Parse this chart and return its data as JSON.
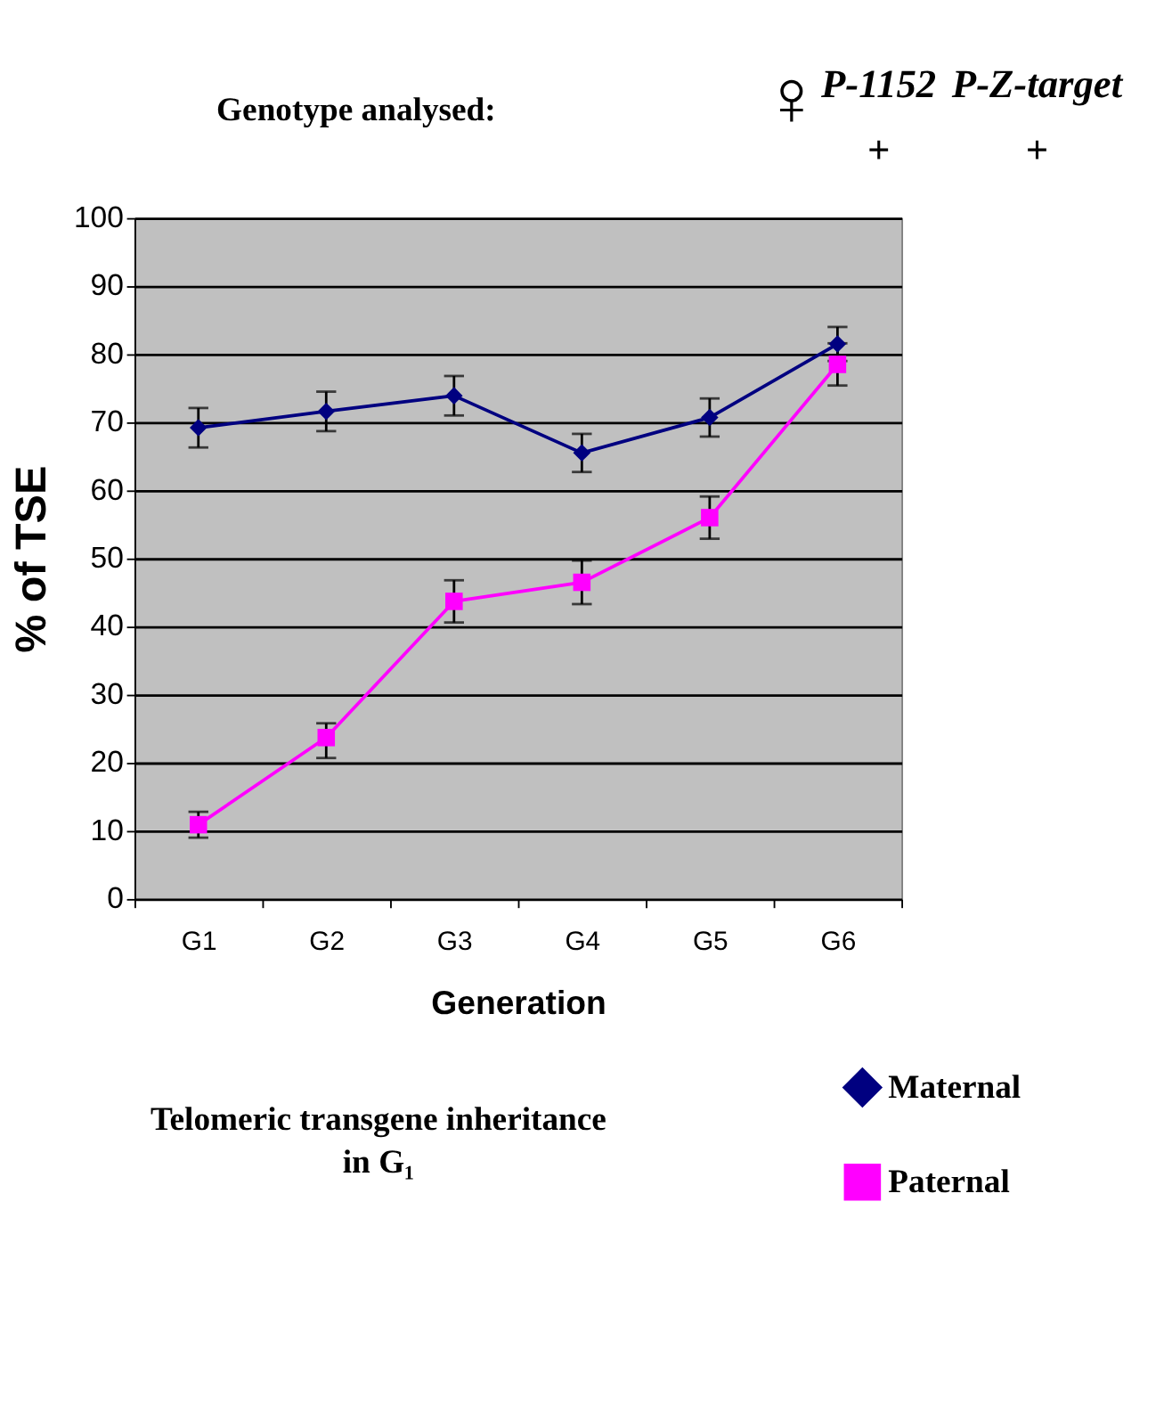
{
  "chart_data": {
    "type": "line",
    "title": "Genotype analysed:",
    "annotations": [
      "♀",
      "P-1152",
      "+",
      "P-Z-target",
      "+"
    ],
    "xlabel": "Generation",
    "ylabel": "% of TSE",
    "legend_title": "Telomeric transgene inheritance in G₁",
    "categories": [
      "G1",
      "G2",
      "G3",
      "G4",
      "G5",
      "G6"
    ],
    "series": [
      {
        "name": "Maternal",
        "color": "#000080",
        "marker": "diamond",
        "values": [
          69.2,
          71.6,
          73.9,
          65.5,
          70.7,
          81.5
        ],
        "errors": [
          2.9,
          2.9,
          2.9,
          2.8,
          2.8,
          2.5
        ]
      },
      {
        "name": "Paternal",
        "color": "#ff00ff",
        "marker": "square",
        "values": [
          10.9,
          23.7,
          43.7,
          46.5,
          56.0,
          78.5
        ],
        "errors": [
          1.9,
          [
            20.7,
            25.8
          ],
          3.1,
          3.2,
          3.1,
          3.1
        ]
      }
    ],
    "ylim": [
      0,
      100
    ],
    "yticks": [
      0,
      10,
      20,
      30,
      40,
      50,
      60,
      70,
      80,
      90,
      100
    ],
    "grid": "y",
    "legend": "bottom",
    "line_style": "solid"
  }
}
